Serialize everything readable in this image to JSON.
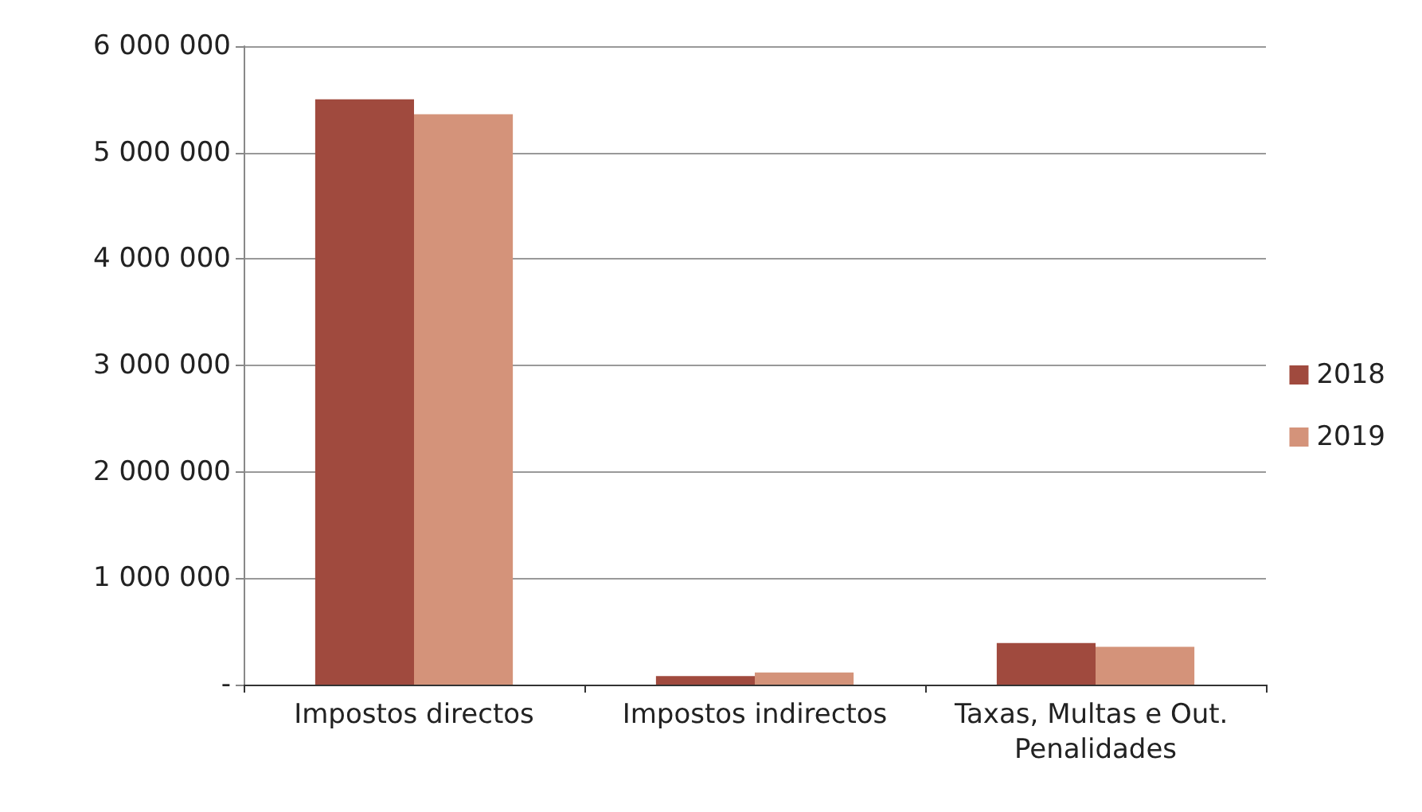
{
  "chart_data": {
    "type": "bar",
    "categories": [
      "Impostos directos",
      "Impostos indirectos",
      "Taxas, Multas e Out. Penalidades"
    ],
    "series": [
      {
        "name": "2018",
        "color": "#a04a3e",
        "values": [
          5500000,
          80000,
          390000
        ]
      },
      {
        "name": "2019",
        "color": "#d4937a",
        "values": [
          5360000,
          115000,
          355000
        ]
      }
    ],
    "ylim": [
      0,
      6000000
    ],
    "yticks": [
      {
        "value": 0,
        "label": "-"
      },
      {
        "value": 1000000,
        "label": "1 000 000"
      },
      {
        "value": 2000000,
        "label": "2 000 000"
      },
      {
        "value": 3000000,
        "label": "3 000 000"
      },
      {
        "value": 4000000,
        "label": "4 000 000"
      },
      {
        "value": 5000000,
        "label": "5 000 000"
      },
      {
        "value": 6000000,
        "label": "6 000 000"
      }
    ],
    "grid": "y",
    "legend": "right"
  }
}
